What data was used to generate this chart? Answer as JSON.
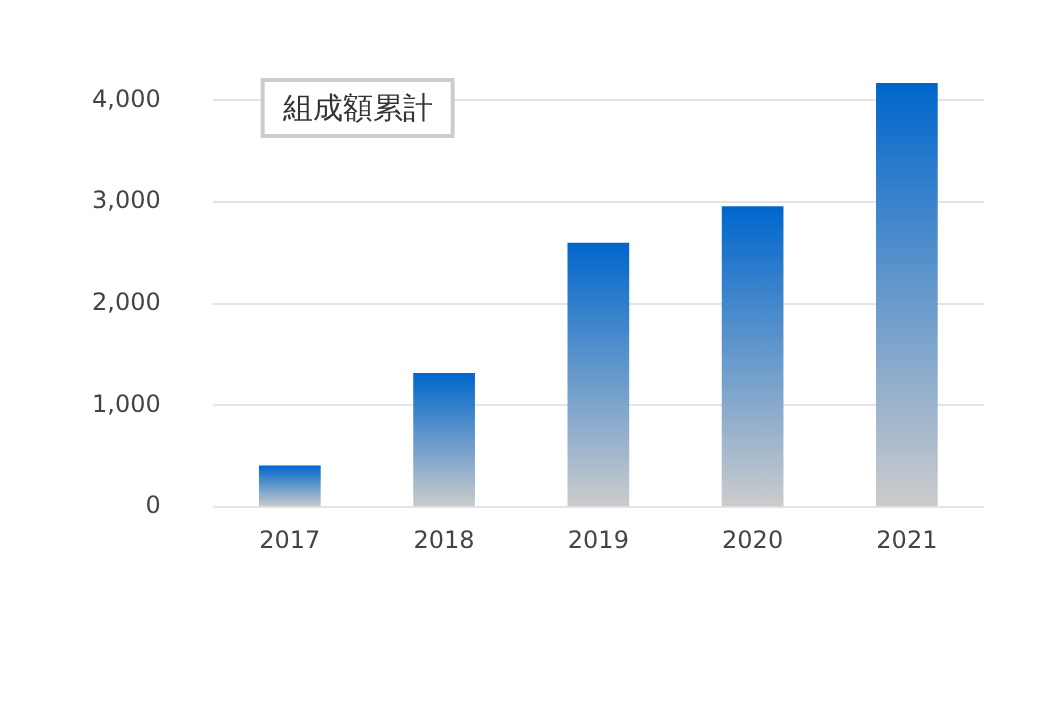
{
  "chart_data": {
    "type": "bar",
    "categories": [
      "2017",
      "2018",
      "2019",
      "2020",
      "2021"
    ],
    "series": [
      {
        "name": "組成額累計",
        "color": "#0066cc",
        "values": [
          410,
          1320,
          2600,
          2960,
          4170
        ]
      }
    ],
    "ylim": [
      0,
      4200
    ],
    "yticks": [
      0,
      {
        "value": 1000,
        "label": "1,000"
      },
      {
        "value": 2000,
        "label": "2,000"
      },
      {
        "value": 3000,
        "label": "3,000"
      },
      {
        "value": 4000,
        "label": "4,000"
      }
    ],
    "grid": "y",
    "legend": "top left"
  }
}
